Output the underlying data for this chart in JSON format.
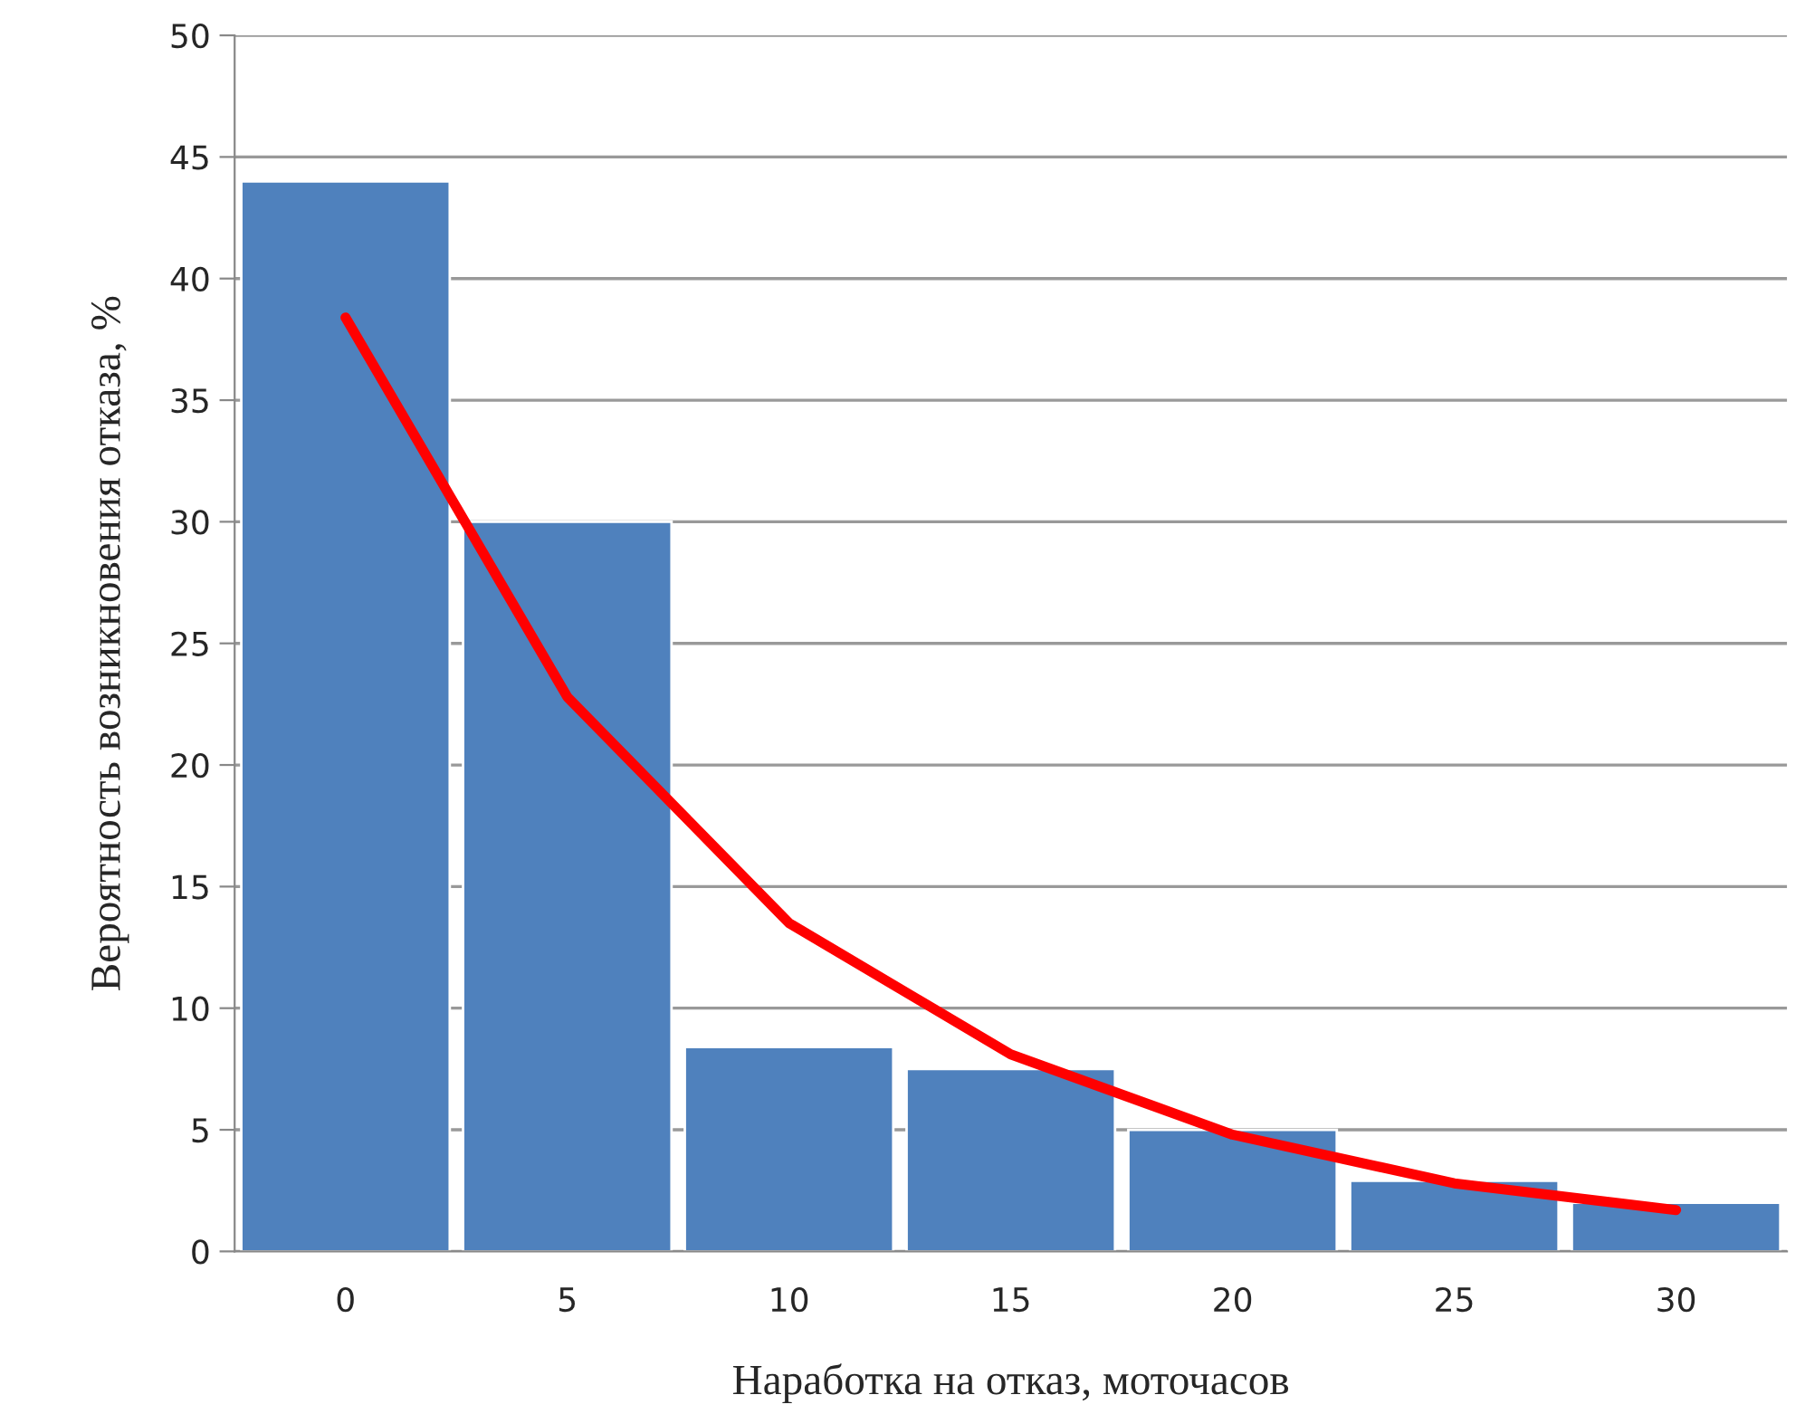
{
  "chart_data": {
    "type": "bar",
    "xlabel": "Наработка на отказ, моточасов",
    "ylabel": "Вероятность возникновения отказа, %",
    "categories": [
      "0",
      "5",
      "10",
      "15",
      "20",
      "25",
      "30"
    ],
    "series": [
      {
        "color": "#4f81bd",
        "values": [
          44,
          30,
          8.4,
          7.5,
          5,
          2.9,
          2
        ]
      },
      {
        "type": "line",
        "color": "#ff0000",
        "values": [
          38.4,
          22.8,
          13.5,
          8.1,
          4.8,
          2.8,
          1.7
        ]
      }
    ],
    "ylim": [
      0,
      50
    ],
    "yticks": [
      0,
      5,
      10,
      15,
      20,
      25,
      30,
      35,
      40,
      45,
      50
    ],
    "grid": "y",
    "legend": false,
    "line_style": "solid",
    "marker": "none"
  }
}
